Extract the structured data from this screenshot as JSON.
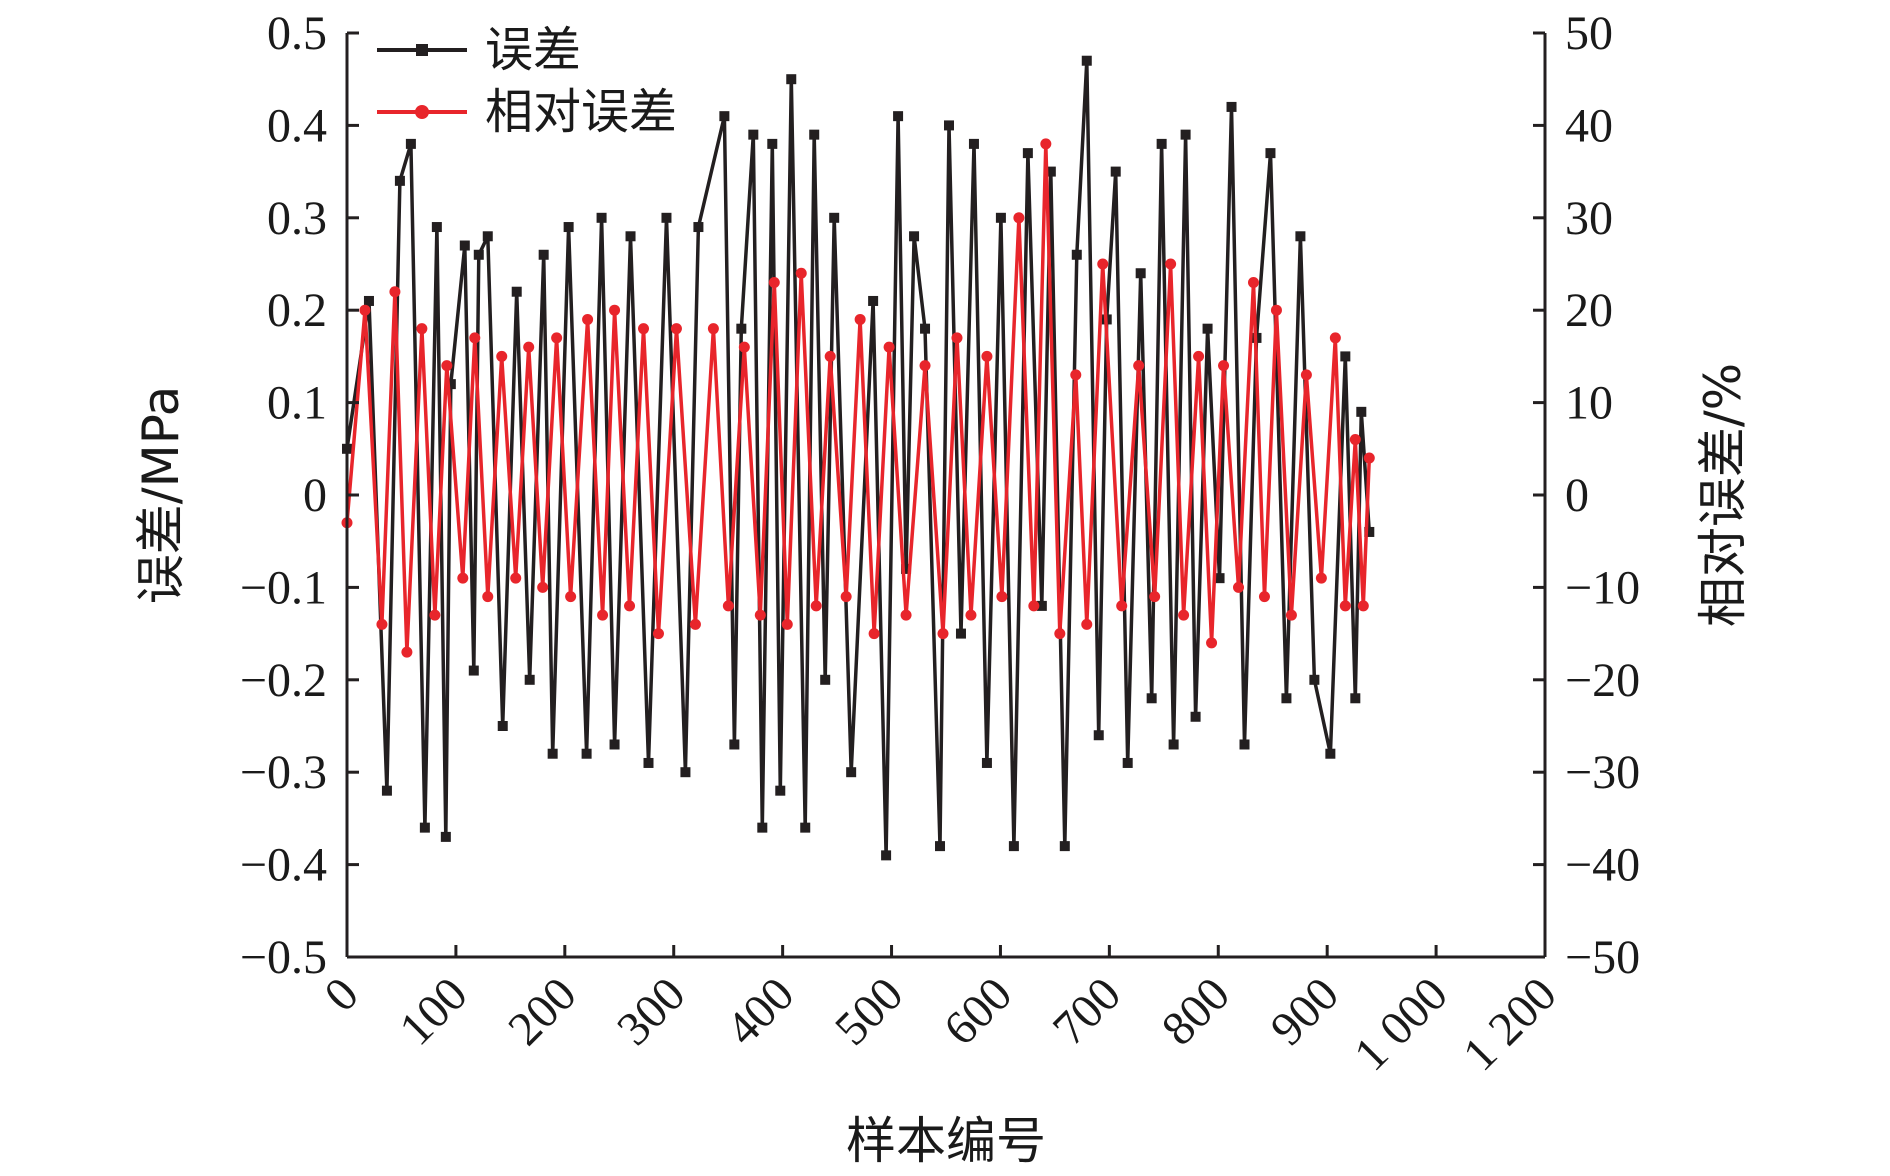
{
  "chart_data": {
    "type": "line",
    "xlabel": "样本编号",
    "ylabel_left": "误差/MPa",
    "ylabel_right": "相对误差/%",
    "xlim": [
      0,
      1200
    ],
    "ylim_left": [
      -0.5,
      0.5
    ],
    "ylim_right": [
      -50,
      50
    ],
    "x_ticks": [
      "0",
      "100",
      "200",
      "300",
      "400",
      "500",
      "600",
      "700",
      "800",
      "900",
      "1 000",
      "1 200"
    ],
    "y_left_ticks": [
      "0.5",
      "0.4",
      "0.3",
      "0.2",
      "0.1",
      "0",
      "−0.1",
      "−0.2",
      "−0.3",
      "−0.4",
      "−0.5"
    ],
    "y_right_ticks": [
      "50",
      "40",
      "30",
      "20",
      "10",
      "0",
      "−10",
      "−20",
      "−30",
      "−40",
      "−50"
    ],
    "legend_position": "top-left",
    "series": [
      {
        "name": "误差",
        "axis": "left",
        "color": "#231f20",
        "marker": "square",
        "x": [
          0,
          22,
          40,
          53,
          64,
          78,
          90,
          99,
          104,
          118,
          127,
          132,
          141,
          156,
          170,
          183,
          197,
          206,
          222,
          240,
          255,
          268,
          284,
          302,
          320,
          339,
          352,
          378,
          388,
          395,
          407,
          416,
          426,
          434,
          445,
          459,
          468,
          479,
          488,
          505,
          527,
          540,
          552,
          560,
          568,
          579,
          594,
          603,
          615,
          628,
          641,
          655,
          668,
          682,
          696,
          705,
          719,
          731,
          741,
          753,
          761,
          770,
          782,
          795,
          806,
          816,
          828,
          840,
          850,
          862,
          874,
          886,
          899,
          911,
          925,
          941,
          955,
          969,
          985,
          1000,
          1010,
          1016,
          1024
        ],
        "values": [
          0.05,
          0.21,
          -0.32,
          0.34,
          0.38,
          -0.36,
          0.29,
          -0.37,
          0.12,
          0.27,
          -0.19,
          0.26,
          0.28,
          -0.25,
          0.22,
          -0.2,
          0.26,
          -0.28,
          0.29,
          -0.28,
          0.3,
          -0.27,
          0.28,
          -0.29,
          0.3,
          -0.3,
          0.29,
          0.41,
          -0.27,
          0.18,
          0.39,
          -0.36,
          0.38,
          -0.32,
          0.45,
          -0.36,
          0.39,
          -0.2,
          0.3,
          -0.3,
          0.21,
          -0.39,
          0.41,
          -0.08,
          0.28,
          0.18,
          -0.38,
          0.4,
          -0.15,
          0.38,
          -0.29,
          0.3,
          -0.38,
          0.37,
          -0.12,
          0.35,
          -0.38,
          0.26,
          0.47,
          -0.26,
          0.19,
          0.35,
          -0.29,
          0.24,
          -0.22,
          0.38,
          -0.27,
          0.39,
          -0.24,
          0.18,
          -0.09,
          0.42,
          -0.27,
          0.17,
          0.37,
          -0.22,
          0.28,
          -0.2,
          -0.28,
          0.15,
          -0.22,
          0.09,
          -0.04
        ]
      },
      {
        "name": "相对误差",
        "axis": "right",
        "color": "#e8252b",
        "marker": "circle",
        "x": [
          0,
          18,
          35,
          48,
          60,
          75,
          88,
          100,
          116,
          128,
          141,
          155,
          169,
          182,
          196,
          210,
          224,
          241,
          256,
          268,
          283,
          297,
          312,
          330,
          349,
          367,
          382,
          398,
          414,
          428,
          441,
          455,
          470,
          484,
          500,
          514,
          528,
          543,
          560,
          579,
          597,
          611,
          625,
          641,
          656,
          673,
          688,
          700,
          714,
          730,
          741,
          757,
          776,
          793,
          809,
          825,
          838,
          853,
          866,
          878,
          893,
          908,
          919,
          931,
          946,
          961,
          976,
          990,
          1000,
          1010,
          1018,
          1024
        ],
        "values": [
          -3,
          20,
          -14,
          22,
          -17,
          18,
          -13,
          14,
          -9,
          17,
          -11,
          15,
          -9,
          16,
          -10,
          17,
          -11,
          19,
          -13,
          20,
          -12,
          18,
          -15,
          18,
          -14,
          18,
          -12,
          16,
          -13,
          23,
          -14,
          24,
          -12,
          15,
          -11,
          19,
          -15,
          16,
          -13,
          14,
          -15,
          17,
          -13,
          15,
          -11,
          30,
          -12,
          38,
          -15,
          13,
          -14,
          25,
          -12,
          14,
          -11,
          25,
          -13,
          15,
          -16,
          14,
          -10,
          23,
          -11,
          20,
          -13,
          13,
          -9,
          17,
          -12,
          6,
          -12,
          4
        ]
      }
    ]
  }
}
